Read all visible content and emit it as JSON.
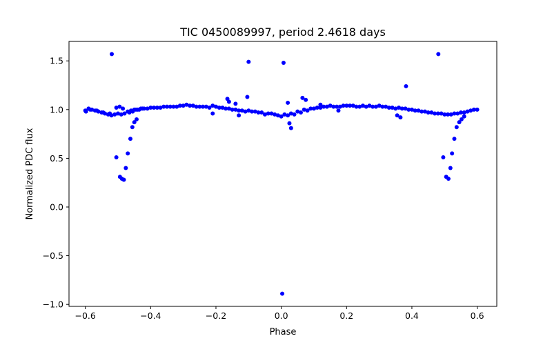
{
  "chart_data": {
    "type": "scatter",
    "title": "TIC 0450089997, period 2.4618 days",
    "xlabel": "Phase",
    "ylabel": "Normalized PDC flux",
    "xlim": [
      -0.65,
      0.66
    ],
    "ylim": [
      -1.02,
      1.7
    ],
    "grid": false,
    "legend": "none",
    "marker_color": "#0000ff",
    "xticks": [
      {
        "value": -0.6,
        "label": "−0.6"
      },
      {
        "value": -0.4,
        "label": "−0.4"
      },
      {
        "value": -0.2,
        "label": "−0.2"
      },
      {
        "value": 0.0,
        "label": "0.0"
      },
      {
        "value": 0.2,
        "label": "0.2"
      },
      {
        "value": 0.4,
        "label": "0.4"
      },
      {
        "value": 0.6,
        "label": "0.6"
      }
    ],
    "yticks": [
      {
        "value": -1.0,
        "label": "−1.0"
      },
      {
        "value": -0.5,
        "label": "−0.5"
      },
      {
        "value": 0.0,
        "label": "0.0"
      },
      {
        "value": 0.5,
        "label": "0.5"
      },
      {
        "value": 1.0,
        "label": "1.0"
      },
      {
        "value": 1.5,
        "label": "1.5"
      }
    ],
    "series": [
      {
        "name": "Normalized PDC flux",
        "x": [
          -0.6,
          -0.59,
          -0.58,
          -0.57,
          -0.56,
          -0.55,
          -0.54,
          -0.53,
          -0.52,
          -0.51,
          -0.5,
          -0.49,
          -0.48,
          -0.47,
          -0.46,
          -0.45,
          -0.44,
          -0.43,
          -0.42,
          -0.4,
          -0.38,
          -0.36,
          -0.34,
          -0.32,
          -0.3,
          -0.28,
          -0.26,
          -0.24,
          -0.22,
          -0.2,
          -0.18,
          -0.16,
          -0.14,
          -0.12,
          -0.1,
          -0.08,
          -0.06,
          -0.04,
          -0.02,
          0.0,
          0.02,
          0.04,
          0.06,
          0.08,
          0.1,
          0.12,
          0.14,
          0.16,
          0.18,
          0.2,
          0.22,
          0.24,
          0.26,
          0.28,
          0.3,
          0.32,
          0.34,
          0.36,
          0.38,
          0.4,
          0.42,
          0.44,
          0.46,
          0.48,
          0.5,
          0.52,
          0.54,
          0.56,
          0.58,
          0.6,
          -0.598,
          -0.585,
          -0.565,
          -0.545,
          -0.525,
          -0.505,
          -0.495,
          -0.485,
          -0.465,
          -0.455,
          -0.445,
          -0.435,
          -0.425,
          -0.41,
          -0.39,
          -0.37,
          -0.35,
          -0.33,
          -0.31,
          -0.29,
          -0.27,
          -0.25,
          -0.23,
          -0.21,
          -0.19,
          -0.17,
          -0.15,
          -0.13,
          -0.11,
          -0.09,
          -0.07,
          -0.05,
          -0.03,
          -0.01,
          0.01,
          0.03,
          0.05,
          0.07,
          0.09,
          0.11,
          0.13,
          0.15,
          0.17,
          0.19,
          0.21,
          0.23,
          0.25,
          0.27,
          0.29,
          0.31,
          0.33,
          0.35,
          0.37,
          0.39,
          0.41,
          0.43,
          0.45,
          0.47,
          0.49,
          0.51,
          0.53,
          0.55,
          0.57,
          0.59,
          -0.519,
          -0.505,
          -0.494,
          -0.488,
          -0.482,
          -0.476,
          -0.47,
          -0.462,
          -0.456,
          -0.45,
          -0.443,
          0.481,
          0.496,
          0.505,
          0.512,
          0.518,
          0.523,
          0.53,
          0.537,
          0.545,
          0.552,
          0.56,
          -0.1,
          0.007,
          0.003,
          0.382,
          -0.104,
          -0.165,
          -0.16,
          0.065,
          0.075,
          0.02,
          0.025,
          0.03,
          -0.14,
          -0.13,
          0.12,
          0.175,
          0.355,
          0.365,
          -0.21
        ],
        "y": [
          0.99,
          1.01,
          1.0,
          0.99,
          0.98,
          0.97,
          0.96,
          0.95,
          0.94,
          0.95,
          0.96,
          0.95,
          0.96,
          0.98,
          0.99,
          1.0,
          1.0,
          1.01,
          1.01,
          1.02,
          1.02,
          1.03,
          1.03,
          1.03,
          1.04,
          1.04,
          1.03,
          1.03,
          1.02,
          1.03,
          1.02,
          1.01,
          1.0,
          0.99,
          0.99,
          0.98,
          0.97,
          0.96,
          0.95,
          0.93,
          0.94,
          0.95,
          0.97,
          0.99,
          1.01,
          1.02,
          1.03,
          1.03,
          1.03,
          1.04,
          1.04,
          1.03,
          1.03,
          1.03,
          1.04,
          1.03,
          1.02,
          1.02,
          1.01,
          1.0,
          0.99,
          0.98,
          0.97,
          0.96,
          0.95,
          0.95,
          0.96,
          0.97,
          0.99,
          1.0,
          0.98,
          1.0,
          0.99,
          0.97,
          0.96,
          1.02,
          1.03,
          1.01,
          0.97,
          0.98,
          1.0,
          1.0,
          1.01,
          1.01,
          1.02,
          1.02,
          1.03,
          1.03,
          1.04,
          1.05,
          1.04,
          1.03,
          1.03,
          1.04,
          1.02,
          1.01,
          1.0,
          0.99,
          0.98,
          0.98,
          0.97,
          0.95,
          0.96,
          0.94,
          0.95,
          0.96,
          0.98,
          1.0,
          1.01,
          1.02,
          1.03,
          1.04,
          1.03,
          1.04,
          1.04,
          1.03,
          1.04,
          1.04,
          1.03,
          1.03,
          1.02,
          1.01,
          1.01,
          1.0,
          0.99,
          0.98,
          0.97,
          0.96,
          0.96,
          0.95,
          0.96,
          0.97,
          0.98,
          1.0,
          1.57,
          0.51,
          0.31,
          0.29,
          0.28,
          0.4,
          0.55,
          0.7,
          0.82,
          0.87,
          0.9,
          1.57,
          0.51,
          0.31,
          0.29,
          0.4,
          0.55,
          0.7,
          0.82,
          0.87,
          0.9,
          0.93,
          1.49,
          1.48,
          -0.89,
          1.24,
          1.13,
          1.11,
          1.08,
          1.12,
          1.1,
          1.07,
          0.86,
          0.81,
          1.06,
          0.94,
          1.05,
          0.99,
          0.94,
          0.92,
          0.96
        ]
      }
    ]
  }
}
